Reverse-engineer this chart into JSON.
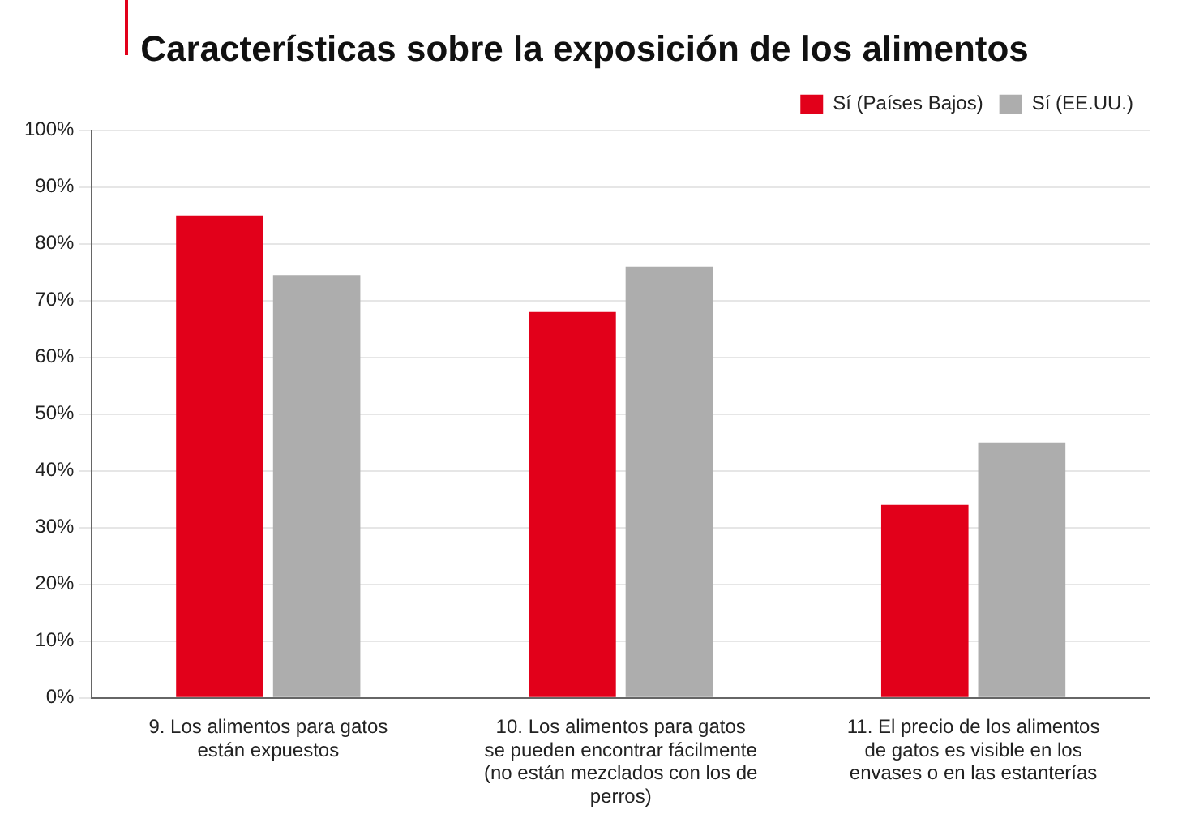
{
  "chart_data": {
    "type": "bar",
    "title": "Características sobre la exposición de los alimentos",
    "categories": [
      "9. Los alimentos para gatos están expuestos",
      "10. Los alimentos para gatos se pueden encontrar fácilmente (no están mezclados con los de perros)",
      "11. El precio de los alimentos de gatos es visible en los envases o en las estanterías"
    ],
    "series": [
      {
        "name": "Sí (Países Bajos)",
        "color": "#e2001a",
        "values": [
          85,
          68,
          34
        ]
      },
      {
        "name": "Sí (EE.UU.)",
        "color": "#adadad",
        "values": [
          74.5,
          76,
          45
        ]
      }
    ],
    "ylim": [
      0,
      100
    ],
    "yticks": [
      {
        "value": 0,
        "label": "0%"
      },
      {
        "value": 10,
        "label": "10%"
      },
      {
        "value": 20,
        "label": "20%"
      },
      {
        "value": 30,
        "label": "30%"
      },
      {
        "value": 40,
        "label": "40%"
      },
      {
        "value": 50,
        "label": "50%"
      },
      {
        "value": 60,
        "label": "60%"
      },
      {
        "value": 70,
        "label": "70%"
      },
      {
        "value": 80,
        "label": "80%"
      },
      {
        "value": 90,
        "label": "90%"
      },
      {
        "value": 100,
        "label": "100%"
      }
    ],
    "grid": "y",
    "legend": "top right"
  }
}
